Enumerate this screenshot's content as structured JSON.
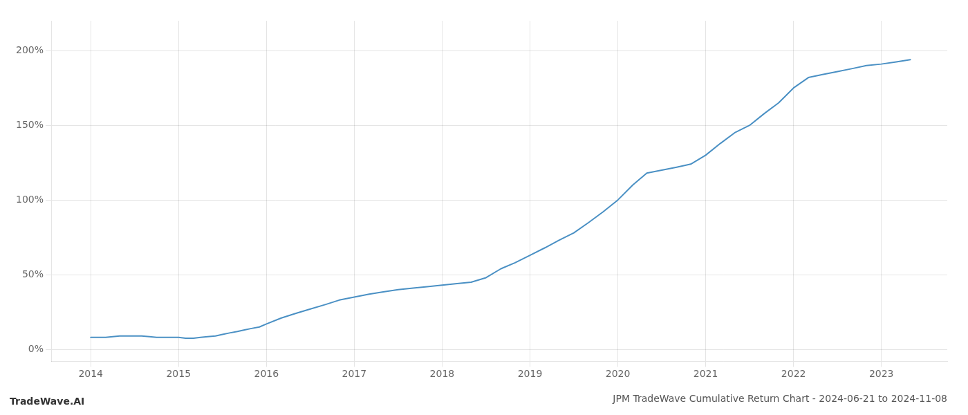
{
  "chart_data": {
    "type": "line",
    "title": "JPM TradeWave Cumulative Return Chart - 2024-06-21 to 2024-11-08",
    "annotations": [
      "TradeWave.AI"
    ],
    "color": "#4a90c4",
    "grid": true,
    "x": [
      2014.0,
      2014.08,
      2014.17,
      2014.25,
      2014.33,
      2014.42,
      2014.5,
      2014.58,
      2014.67,
      2014.75,
      2014.83,
      2014.92,
      2015.0,
      2015.08,
      2015.17,
      2015.25,
      2015.33,
      2015.42,
      2015.5,
      2015.58,
      2015.67,
      2015.75,
      2015.83,
      2015.92,
      2016.0,
      2016.17,
      2016.33,
      2016.5,
      2016.67,
      2016.83,
      2017.0,
      2017.17,
      2017.33,
      2017.5,
      2017.67,
      2017.83,
      2018.0,
      2018.17,
      2018.33,
      2018.5,
      2018.67,
      2018.83,
      2019.0,
      2019.17,
      2019.33,
      2019.5,
      2019.67,
      2019.83,
      2020.0,
      2020.17,
      2020.33,
      2020.5,
      2020.67,
      2020.83,
      2021.0,
      2021.17,
      2021.33,
      2021.5,
      2021.67,
      2021.83,
      2022.0,
      2022.17,
      2022.33,
      2022.5,
      2022.67,
      2022.83,
      2023.0,
      2023.17,
      2023.33
    ],
    "values": [
      8,
      8,
      8,
      8.5,
      9,
      9,
      9,
      9,
      8.5,
      8,
      8,
      8,
      8,
      7.5,
      7.5,
      8,
      8.5,
      9,
      10,
      11,
      12,
      13,
      14,
      15,
      17,
      21,
      24,
      27,
      30,
      33,
      35,
      37,
      38.5,
      40,
      41,
      42,
      43,
      44,
      45,
      48,
      54,
      58,
      63,
      68,
      73,
      78,
      85,
      92,
      100,
      110,
      118,
      120,
      122,
      124,
      130,
      138,
      145,
      150,
      158,
      165,
      175,
      182,
      184,
      186,
      188,
      190,
      191,
      192.5,
      194
    ],
    "xlim": [
      2013.55,
      2023.75
    ],
    "xticks": [
      2014,
      2015,
      2016,
      2017,
      2018,
      2019,
      2020,
      2021,
      2022,
      2023
    ],
    "ylim": [
      -8,
      220
    ],
    "yticks": [
      {
        "value": 0,
        "label": "0%"
      },
      {
        "value": 50,
        "label": "50%"
      },
      {
        "value": 100,
        "label": "100%"
      },
      {
        "value": 150,
        "label": "150%"
      },
      {
        "value": 200,
        "label": "200%"
      }
    ]
  }
}
